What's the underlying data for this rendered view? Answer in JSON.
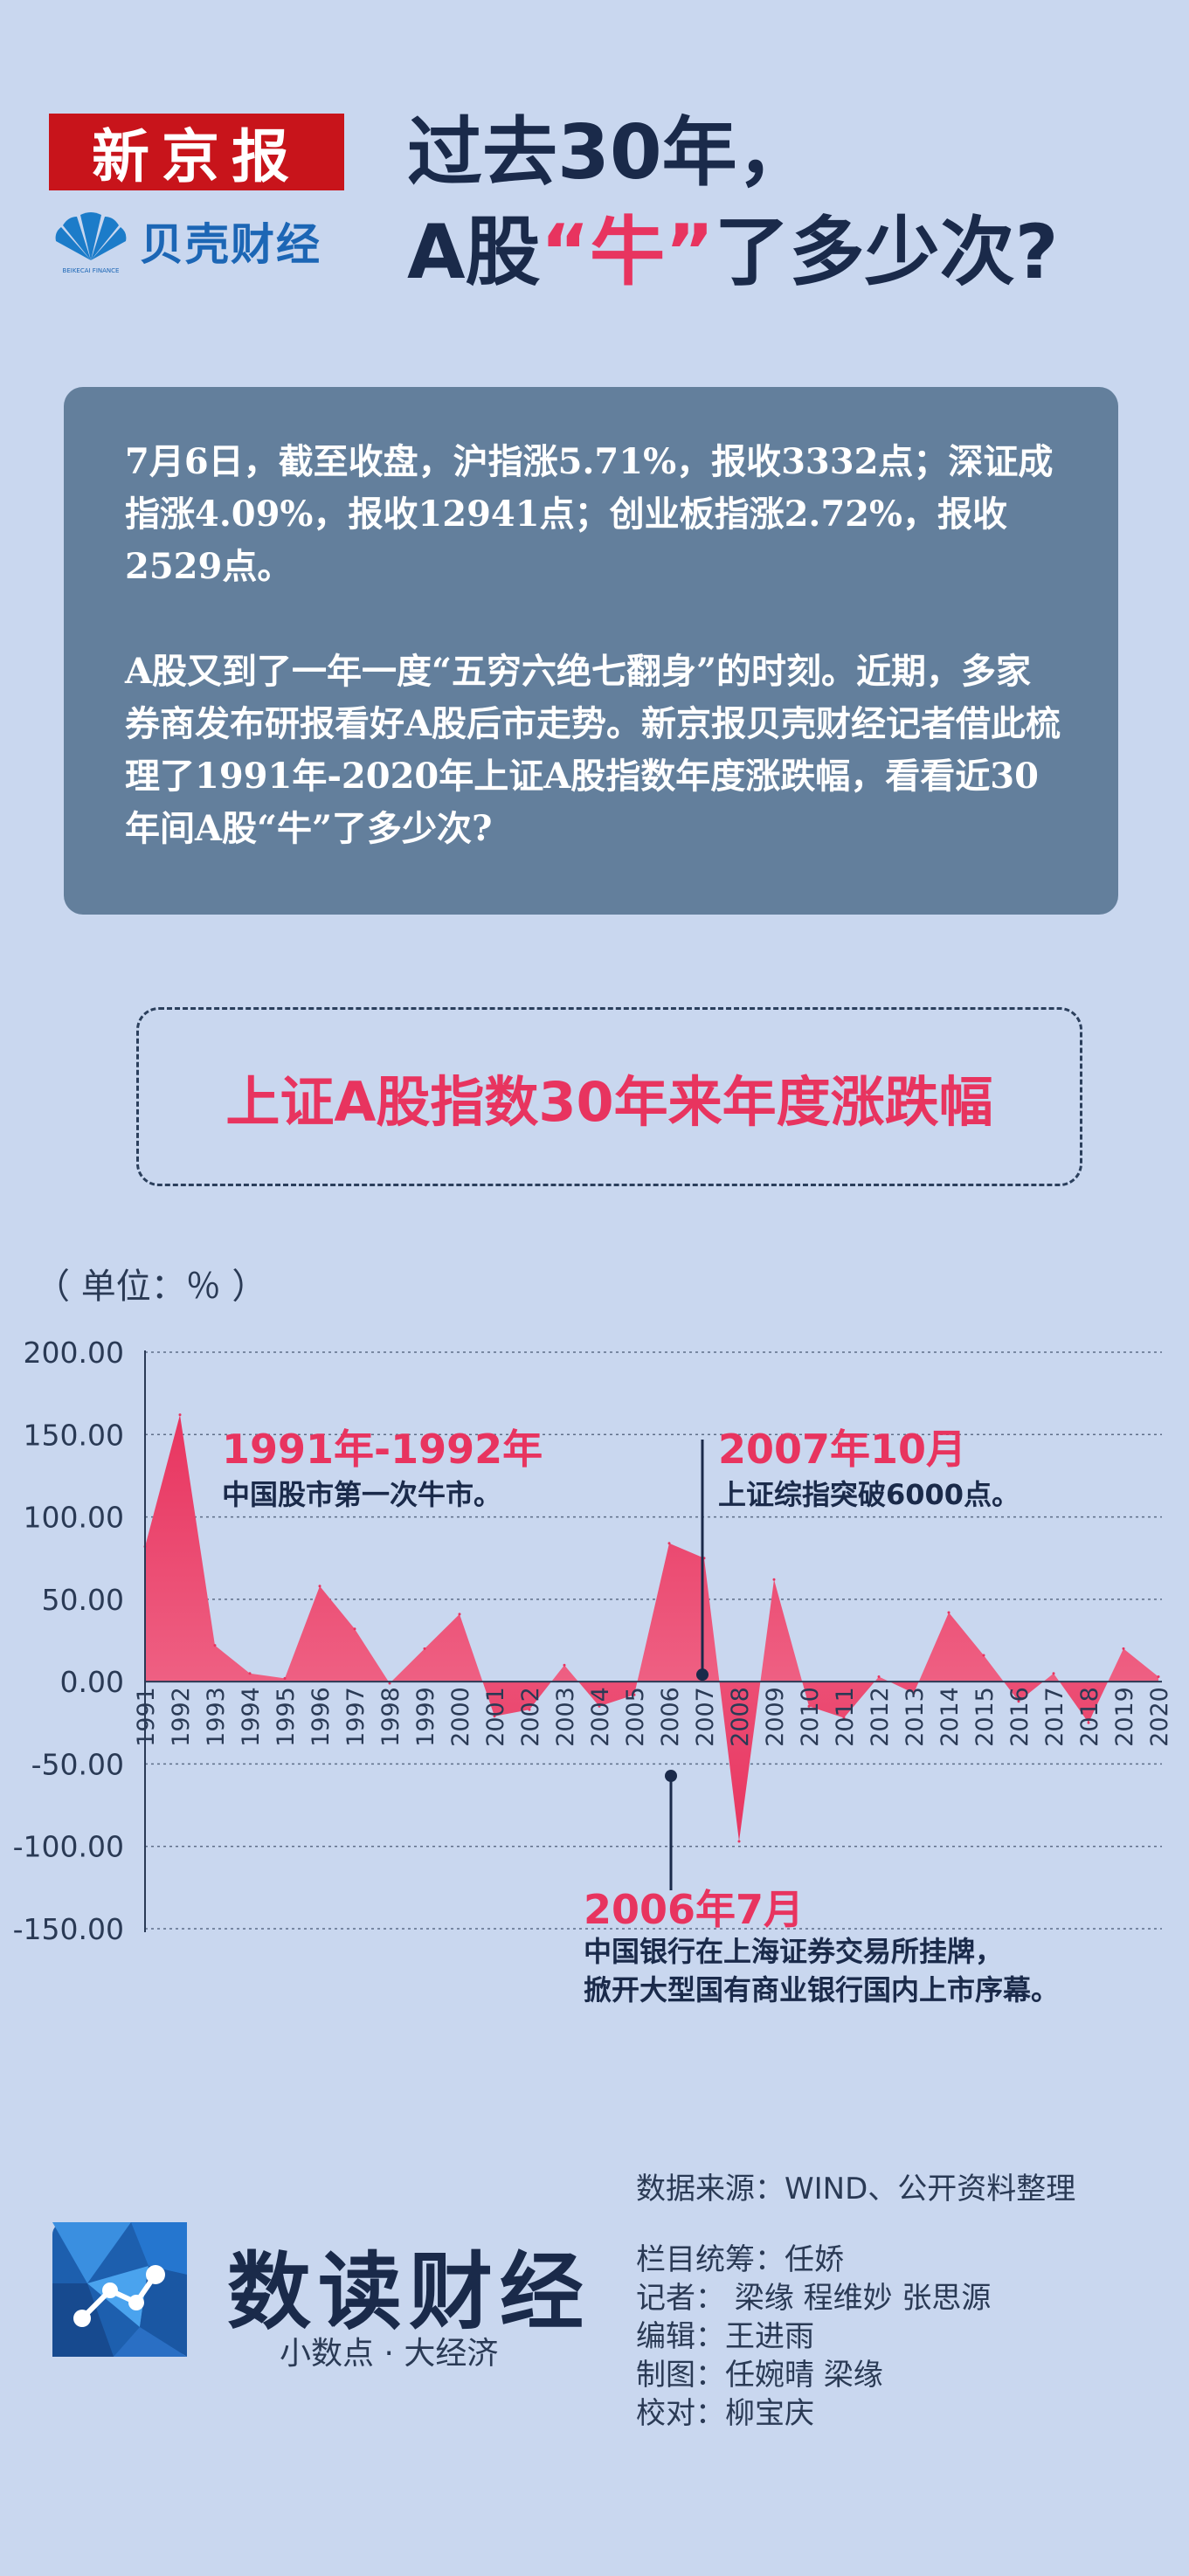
{
  "header": {
    "brand_primary": "新京报",
    "brand_secondary": "贝壳财经",
    "brand_secondary_small": "BEIKECAI FINANCE",
    "headline_line1": "过去30年，",
    "headline_line2_prefix": "A股",
    "headline_quote_open": "“",
    "headline_quote_word": "牛",
    "headline_quote_close": "”",
    "headline_line2_suffix": "了多少次?"
  },
  "intro": {
    "paragraph1": "7月6日，截至收盘，沪指涨5.71%，报收3332点；深证成指涨4.09%，报收12941点；创业板指涨2.72%，报收2529点。",
    "paragraph2": "A股又到了一年一度“五穷六绝七翻身”的时刻。近期，多家券商发布研报看好A股后市走势。新京报贝壳财经记者借此梳理了1991年-2020年上证A股指数年度涨跌幅，看看近30年间A股“牛”了多少次?"
  },
  "chart_title": "上证A股指数30年来年度涨跌幅",
  "unit_label": "（ 单位：％ ）",
  "chart_data": {
    "type": "area",
    "title": "上证A股指数30年来年度涨跌幅",
    "ylabel": "（ 单位：％ ）",
    "x": [
      "1991",
      "1992",
      "1993",
      "1994",
      "1995",
      "1996",
      "1997",
      "1998",
      "1999",
      "2000",
      "2001",
      "2002",
      "2003",
      "2004",
      "2005",
      "2006",
      "2007",
      "2008",
      "2009",
      "2010",
      "2011",
      "2012",
      "2013",
      "2014",
      "2015",
      "2016",
      "2017",
      "2018",
      "2019",
      "2020"
    ],
    "values": [
      82,
      162,
      22,
      5,
      2,
      58,
      32,
      -1,
      20,
      41,
      -21,
      -17,
      10,
      -15,
      -8,
      84,
      75,
      -97,
      62,
      -15,
      -22,
      3,
      -7,
      42,
      16,
      -12,
      5,
      -25,
      20,
      3
    ],
    "yticks": [
      "200.00",
      "150.00",
      "100.00",
      "50.00",
      "0.00",
      "-50.00",
      "-100.00",
      "-150.00"
    ],
    "ylim": [
      -150,
      200
    ],
    "grid": true,
    "colors": {
      "fill": "#e8345f",
      "axis": "#2a3a55",
      "grid": "#5e6e88"
    },
    "annotations": [
      {
        "year": "1992",
        "title": "1991年-1992年",
        "text": [
          "中国股市第一次牛市。"
        ]
      },
      {
        "year": "2007",
        "title": "2007年10月",
        "text": [
          "上证综指突破6000点。"
        ]
      },
      {
        "year": "2006",
        "title": "2006年7月",
        "text": [
          "中国银行在上海证券交易所挂牌，",
          "掀开大型国有商业银行国内上市序幕。"
        ]
      }
    ]
  },
  "footer": {
    "source": "数据来源：WIND、公开资料整理",
    "logo_name": "数读财经",
    "slogan": "小数点 · 大经济",
    "credits": [
      "栏目统筹：任娇",
      "记者：  梁缘 程维妙 张思源",
      "编辑：王进雨",
      "制图：任婉晴 梁缘",
      "校对：柳宝庆"
    ],
    "logo_icon": "geometric-node-icon",
    "shell_icon": "shell-icon"
  }
}
